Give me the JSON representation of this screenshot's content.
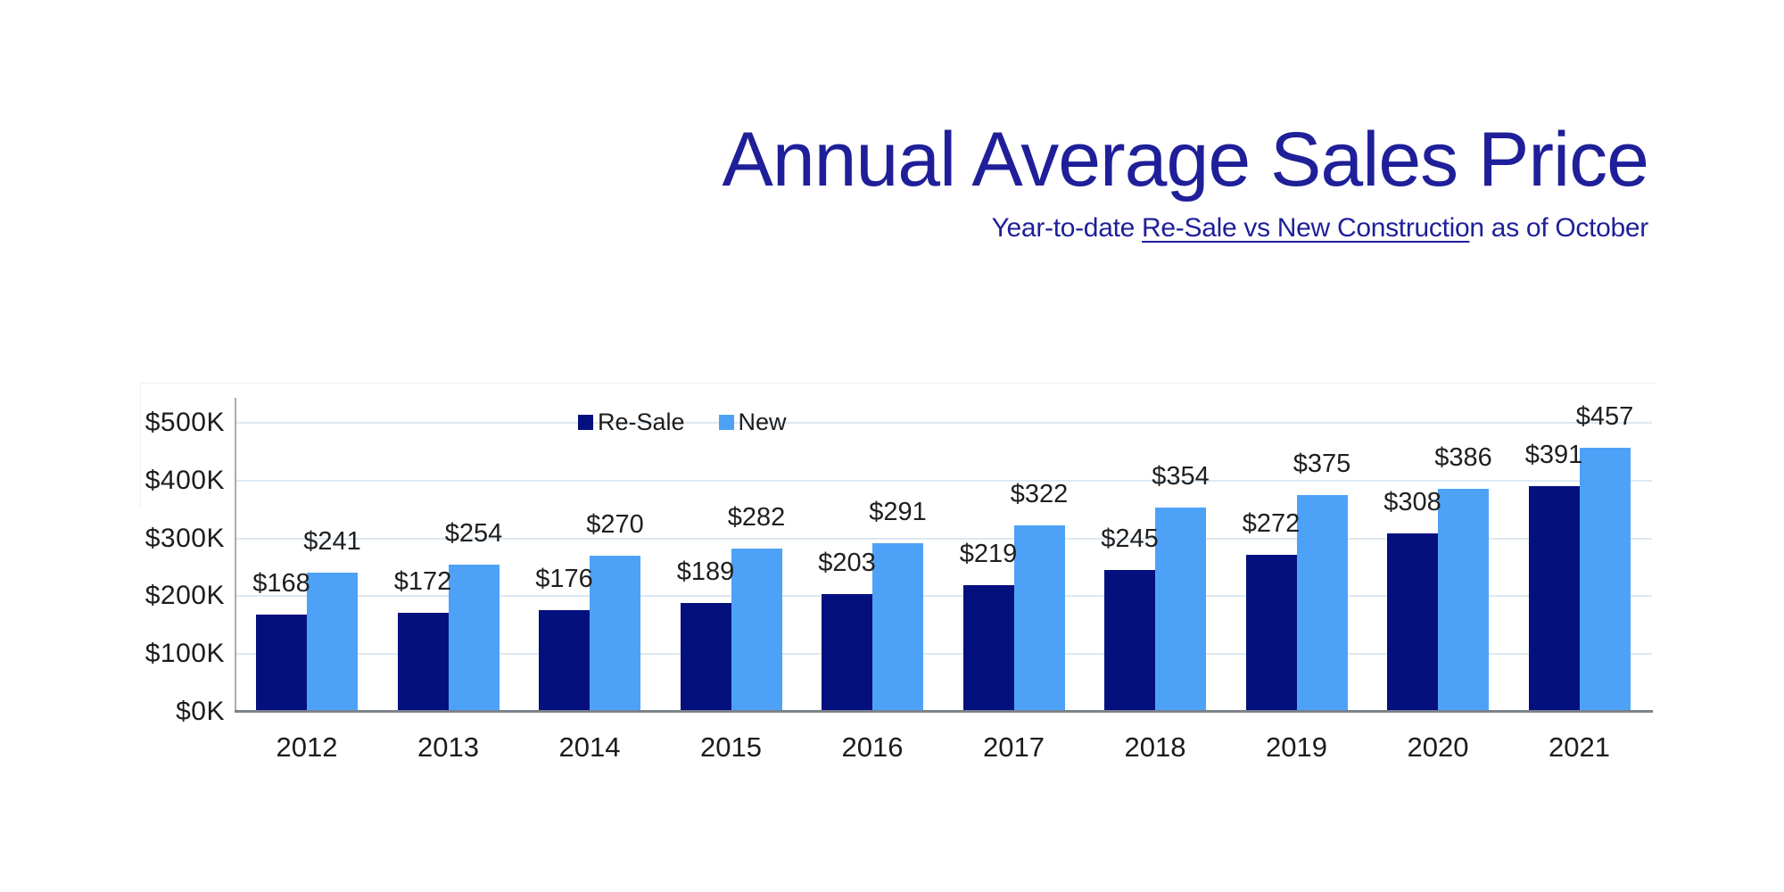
{
  "title": "Annual Average Sales Price",
  "subtitle": {
    "prefix": "Year-to-date ",
    "underlined": "Re-Sale vs New Constructio",
    "suffix": "n as of October"
  },
  "legend": {
    "resale_label": "Re-Sale",
    "new_label": "New"
  },
  "colors": {
    "title": "#1f1f99",
    "resale": "#05107f",
    "new": "#4da2f8",
    "gridline": "#dde8f2",
    "axis_x": "#7c828a",
    "axis_y": "#a7adb3",
    "label_text": "#1f1f1f",
    "tick_text": "#1c1c1c",
    "faint": "#edf0f3"
  },
  "chart_data": {
    "type": "bar",
    "title": "Annual Average Sales Price",
    "subtitle": "Year-to-date Re-Sale vs New Construction as of October",
    "categories": [
      "2012",
      "2013",
      "2014",
      "2015",
      "2016",
      "2017",
      "2018",
      "2019",
      "2020",
      "2021"
    ],
    "series": [
      {
        "name": "Re-Sale",
        "color": "#05107f",
        "values": [
          168,
          172,
          176,
          189,
          203,
          219,
          245,
          272,
          308,
          391
        ]
      },
      {
        "name": "New",
        "color": "#4da2f8",
        "values": [
          241,
          254,
          270,
          282,
          291,
          322,
          354,
          375,
          386,
          457
        ]
      }
    ],
    "value_prefix": "$",
    "value_labels": {
      "Re-Sale": [
        "$168",
        "$172",
        "$176",
        "$189",
        "$203",
        "$219",
        "$245",
        "$272",
        "$308",
        "$391"
      ],
      "New": [
        "$241",
        "$254",
        "$270",
        "$282",
        "$291",
        "$322",
        "$354",
        "$375",
        "$386",
        "$457"
      ]
    },
    "xlabel": "",
    "ylabel": "",
    "y_ticks": [
      "$0K",
      "$100K",
      "$200K",
      "$300K",
      "$400K",
      "$500K"
    ],
    "ylim": [
      0,
      500
    ],
    "grid": true,
    "legend_position": "top-center"
  }
}
